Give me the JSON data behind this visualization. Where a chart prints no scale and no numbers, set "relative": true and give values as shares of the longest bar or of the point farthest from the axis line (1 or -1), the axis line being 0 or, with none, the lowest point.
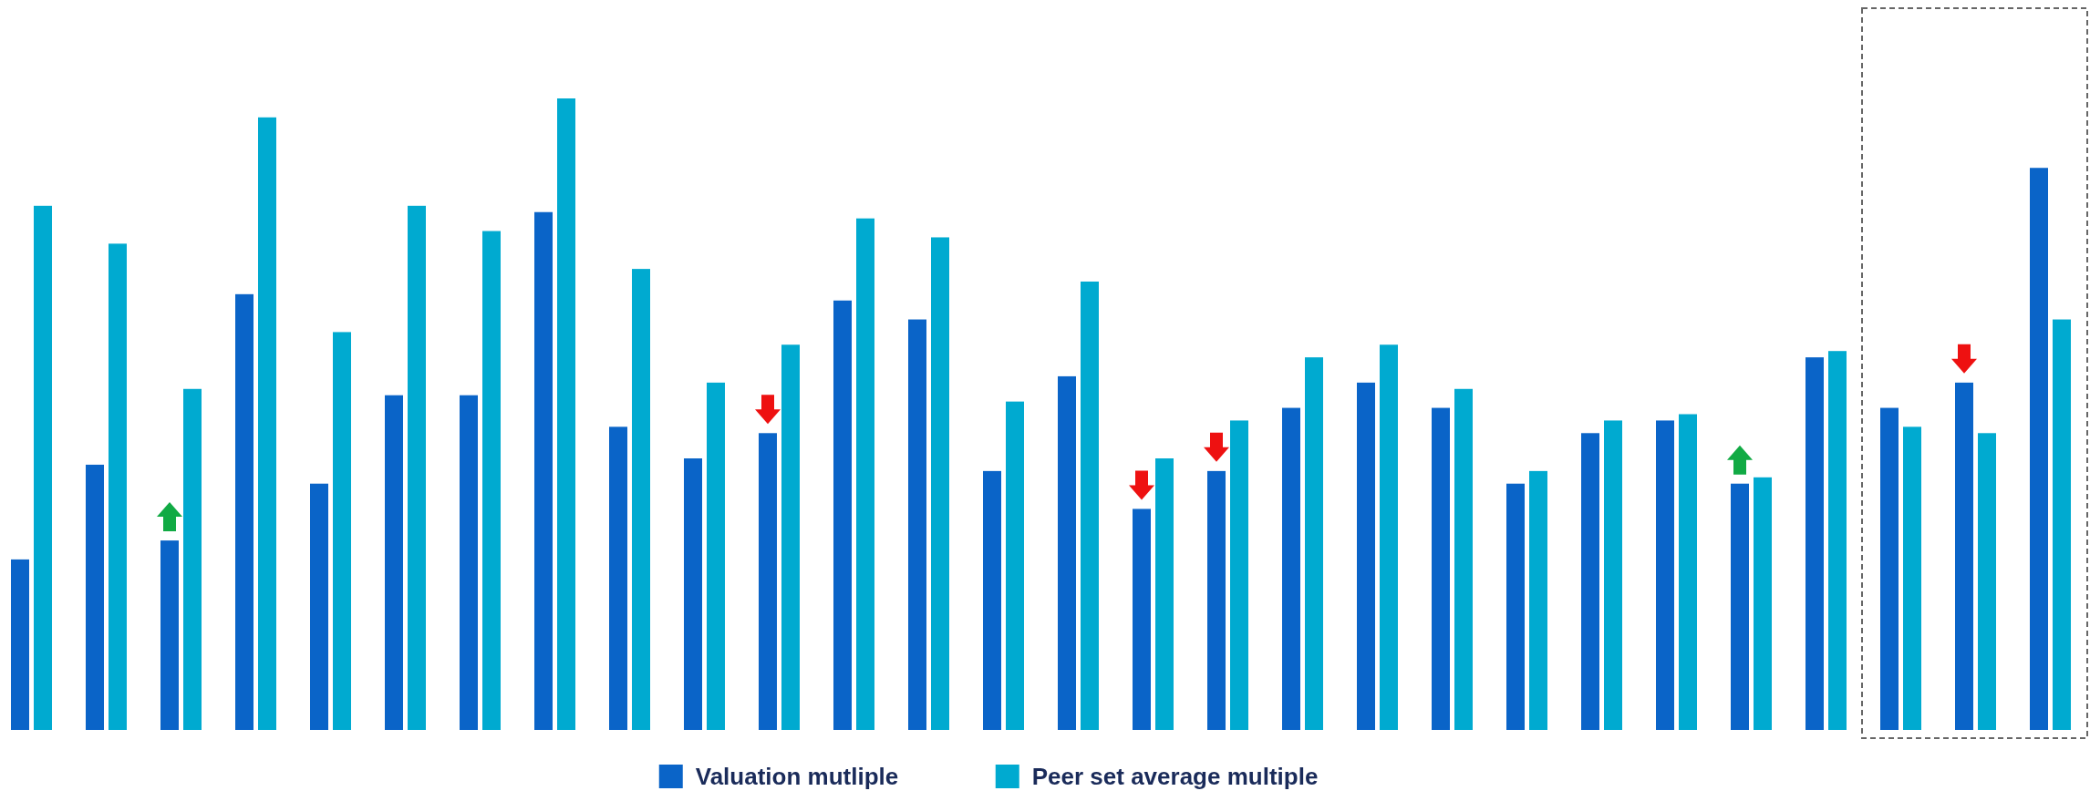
{
  "chart_data": {
    "type": "bar",
    "relative": true,
    "categories": [
      null,
      null,
      null,
      null,
      null,
      null,
      null,
      null,
      null,
      null,
      null,
      null,
      null,
      null,
      null,
      null,
      null,
      null,
      null,
      null,
      null,
      null,
      null,
      null,
      null,
      null,
      null,
      null
    ],
    "series": [
      {
        "name": "Valuation mutliple",
        "color": "#0a64c8",
        "values": [
          0.27,
          0.42,
          0.3,
          0.69,
          0.39,
          0.53,
          0.53,
          0.82,
          0.48,
          0.43,
          0.47,
          0.68,
          0.65,
          0.41,
          0.56,
          0.35,
          0.41,
          0.51,
          0.55,
          0.51,
          0.39,
          0.47,
          0.49,
          0.39,
          0.59,
          0.51,
          0.55,
          0.89
        ]
      },
      {
        "name": "Peer set average multiple",
        "color": "#00aad0",
        "values": [
          0.83,
          0.77,
          0.54,
          0.97,
          0.63,
          0.83,
          0.79,
          1.0,
          0.73,
          0.55,
          0.61,
          0.81,
          0.78,
          0.52,
          0.71,
          0.43,
          0.49,
          0.59,
          0.61,
          0.54,
          0.41,
          0.49,
          0.5,
          0.4,
          0.6,
          0.48,
          0.47,
          0.65
        ]
      }
    ],
    "legend": "bottom",
    "grid": false
  }
}
